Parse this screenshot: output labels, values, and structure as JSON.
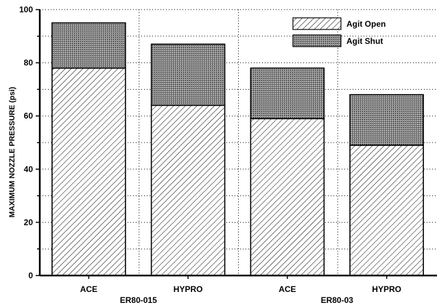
{
  "chart_data": {
    "type": "bar",
    "stacked": true,
    "categories": [
      "ACE",
      "HYPRO",
      "ACE",
      "HYPRO"
    ],
    "groups": [
      {
        "label": "ER80-015",
        "categories": [
          0,
          1
        ]
      },
      {
        "label": "ER80-03",
        "categories": [
          2,
          3
        ]
      }
    ],
    "series": [
      {
        "name": "Agit Open",
        "pattern": "diagonal-hatch",
        "values": [
          78,
          64,
          59,
          49
        ]
      },
      {
        "name": "Agit Shut",
        "pattern": "cross-hatch",
        "values": [
          17,
          23,
          19,
          19
        ]
      }
    ],
    "title": "",
    "xlabel": "",
    "ylabel": "MAXIMUM NOZZLE PRESSURE (psi)",
    "ylim": [
      0,
      100
    ],
    "yticks": [
      0,
      20,
      40,
      60,
      80,
      100
    ],
    "grid": true,
    "legend_position": "top-right"
  }
}
